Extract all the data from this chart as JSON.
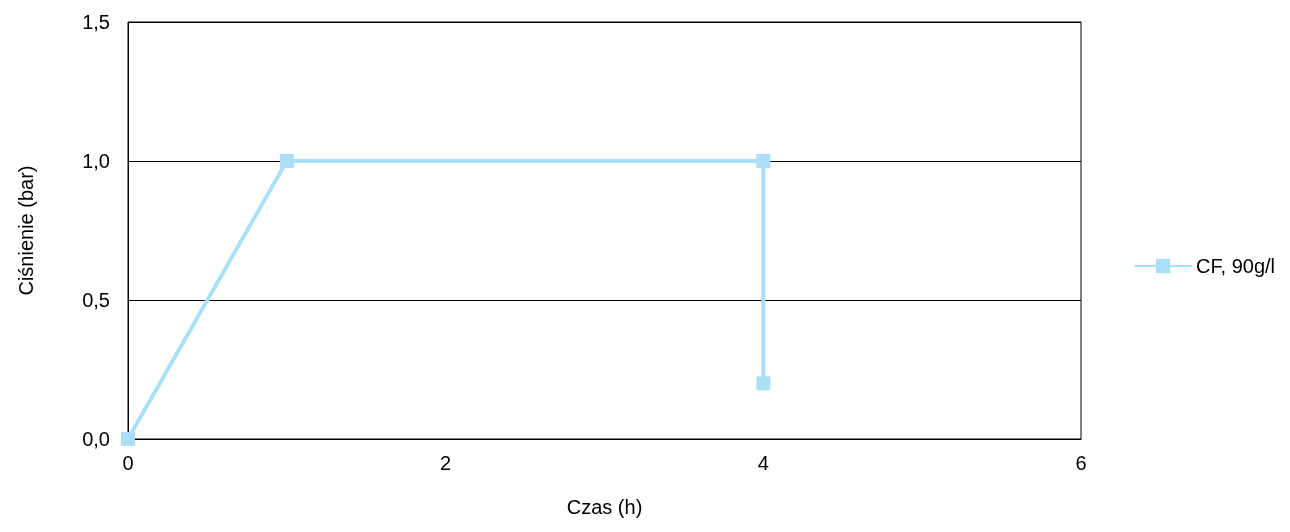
{
  "chart_data": {
    "type": "line",
    "xlabel": "Czas (h)",
    "ylabel": "Ciśnienie (bar)",
    "x": [
      0,
      1,
      4,
      4
    ],
    "series": [
      {
        "name": "CF, 90g/l",
        "color": "#abdff7",
        "values": [
          0,
          1,
          1,
          0.2
        ]
      }
    ],
    "xlim": [
      0,
      6
    ],
    "xticks": [
      0,
      2,
      4,
      6
    ],
    "ylim": [
      0,
      1.5
    ],
    "yticks": [
      {
        "value": 0,
        "label": "0,0"
      },
      {
        "value": 0.5,
        "label": "0,5"
      },
      {
        "value": 1,
        "label": "1,0"
      },
      {
        "value": 1.5,
        "label": "1,5"
      }
    ],
    "grid": "y",
    "legend": "right",
    "marker": "square",
    "line_style": "solid"
  }
}
